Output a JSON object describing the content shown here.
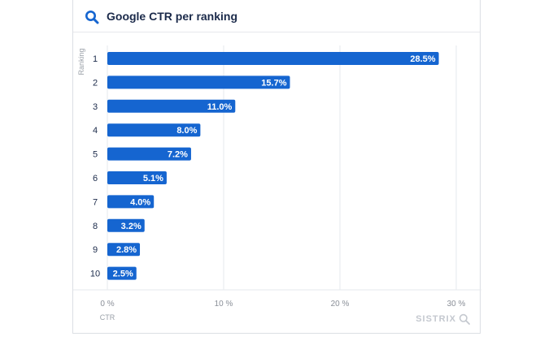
{
  "header": {
    "title": "Google CTR per ranking",
    "icon": "search-icon"
  },
  "brand": {
    "name": "SISTRIX",
    "icon": "search-icon"
  },
  "colors": {
    "bar": "#1565d0",
    "title": "#1b2a4a",
    "accent": "#1565d0"
  },
  "chart_data": {
    "type": "bar",
    "orientation": "horizontal",
    "title": "Google CTR per ranking",
    "ylabel": "Ranking",
    "xlabel": "CTR",
    "categories": [
      "1",
      "2",
      "3",
      "4",
      "5",
      "6",
      "7",
      "8",
      "9",
      "10"
    ],
    "values": [
      28.5,
      15.7,
      11.0,
      8.0,
      7.2,
      5.1,
      4.0,
      3.2,
      2.8,
      2.5
    ],
    "data_labels": [
      "28.5%",
      "15.7%",
      "11.0%",
      "8.0%",
      "7.2%",
      "5.1%",
      "4.0%",
      "3.2%",
      "2.8%",
      "2.5%"
    ],
    "x_ticks": [
      0,
      10,
      20,
      30
    ],
    "x_tick_labels": [
      "0 %",
      "10 %",
      "20 %",
      "30 %"
    ],
    "xlim": [
      0,
      30
    ],
    "grid": true,
    "legend": "none"
  }
}
